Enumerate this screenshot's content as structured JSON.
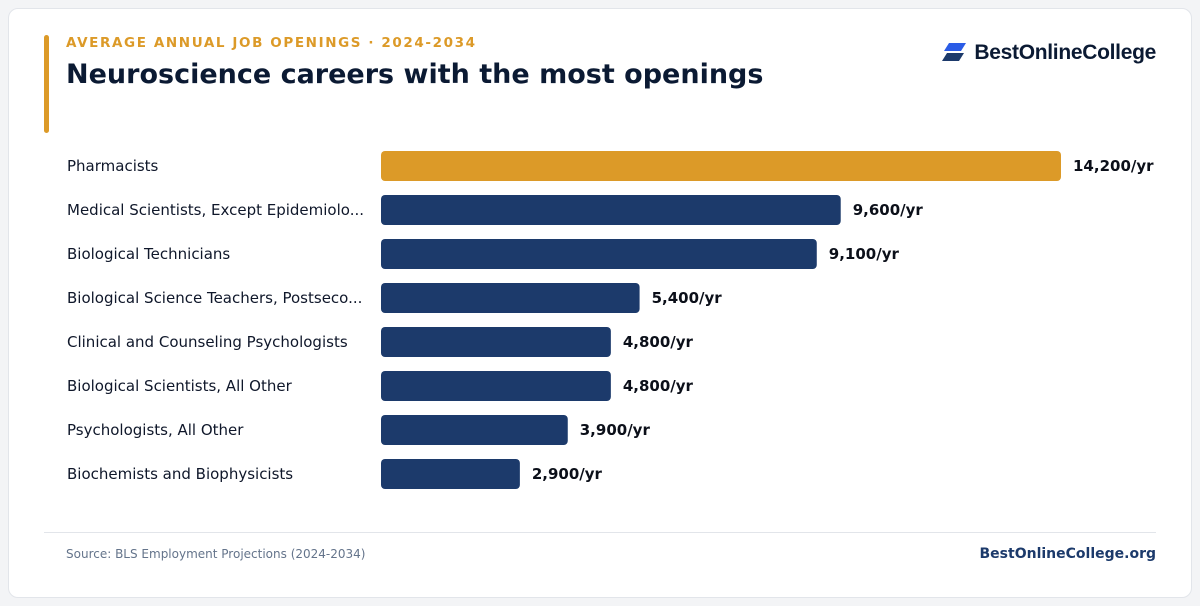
{
  "header": {
    "eyebrow": "AVERAGE ANNUAL JOB OPENINGS · 2024-2034",
    "title": "Neuroscience careers with the most openings",
    "brand": "BestOnlineCollege"
  },
  "footer": {
    "source": "Source: BLS Employment Projections (2024-2034)",
    "site": "BestOnlineCollege.org"
  },
  "colors": {
    "highlight": "#dc9a28",
    "bar": "#1c3a6b",
    "label": "#0f172a",
    "value": "#0b0f19"
  },
  "chart_data": {
    "type": "bar",
    "orientation": "horizontal",
    "categories": [
      "Pharmacists",
      "Medical Scientists, Except Epidemiolo...",
      "Biological Technicians",
      "Biological Science Teachers, Postseco...",
      "Clinical and Counseling Psychologists",
      "Biological Scientists, All Other",
      "Psychologists, All Other",
      "Biochemists and Biophysicists"
    ],
    "values": [
      14200,
      9600,
      9100,
      5400,
      4800,
      4800,
      3900,
      2900
    ],
    "value_labels": [
      "14,200/yr",
      "9,600/yr",
      "9,100/yr",
      "5,400/yr",
      "4,800/yr",
      "4,800/yr",
      "3,900/yr",
      "2,900/yr"
    ],
    "highlight_index": 0,
    "xlim": [
      0,
      14200
    ],
    "title": "Neuroscience careers with the most openings",
    "xlabel": "",
    "ylabel": "",
    "grid": false,
    "legend": "none"
  }
}
